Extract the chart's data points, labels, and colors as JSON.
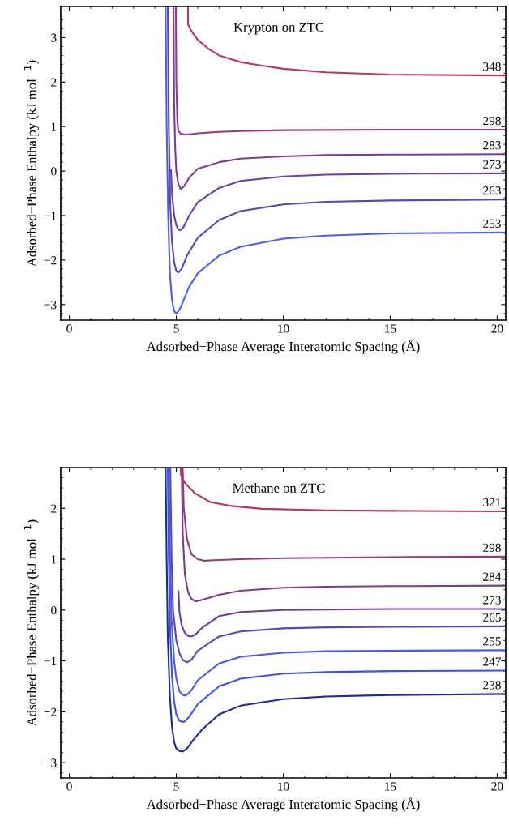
{
  "chart_data": [
    {
      "type": "line",
      "annotations": [
        "Krypton on ZTC"
      ],
      "xlabel": "Adsorbed−Phase Average Interatomic Spacing (Å)",
      "ylabel": "Adsorbed−Phase Enthalpy (kJ mol$^{−1}$)",
      "xlim": [
        -0.4,
        20.4
      ],
      "ylim": [
        -3.35,
        3.7
      ],
      "xticks": [
        0,
        5,
        10,
        15,
        20
      ],
      "yticks": [
        -3,
        -2,
        -1,
        0,
        1,
        2,
        3
      ],
      "grid": false,
      "legend": false,
      "series": [
        {
          "name": "253",
          "color": "#4a5cf5",
          "x": [
            4.5,
            4.55,
            4.62,
            4.7,
            4.8,
            4.9,
            5.0,
            5.15,
            5.3,
            5.6,
            6,
            7,
            8,
            10,
            12,
            15,
            20.4
          ],
          "values": [
            3.7,
            1.0,
            -1.0,
            -2.3,
            -2.9,
            -3.15,
            -3.2,
            -3.12,
            -2.95,
            -2.6,
            -2.3,
            -1.9,
            -1.7,
            -1.52,
            -1.45,
            -1.4,
            -1.38
          ]
        },
        {
          "name": "263",
          "color": "#5a45c0",
          "x": [
            4.6,
            4.65,
            4.72,
            4.8,
            4.9,
            5.0,
            5.1,
            5.25,
            5.5,
            6,
            7,
            8,
            10,
            12,
            15,
            20.4
          ],
          "values": [
            3.7,
            1.0,
            -0.8,
            -1.6,
            -2.05,
            -2.25,
            -2.28,
            -2.2,
            -1.9,
            -1.5,
            -1.1,
            -0.9,
            -0.75,
            -0.69,
            -0.66,
            -0.64
          ]
        },
        {
          "name": "273",
          "color": "#6a3fa8",
          "x": [
            4.75,
            4.8,
            4.9,
            5.0,
            5.1,
            5.2,
            5.35,
            5.6,
            6,
            7,
            8,
            10,
            12,
            15,
            20.4
          ],
          "values": [
            0.03,
            -0.5,
            -1.0,
            -1.22,
            -1.31,
            -1.33,
            -1.25,
            -1.0,
            -0.7,
            -0.38,
            -0.22,
            -0.12,
            -0.08,
            -0.06,
            -0.05
          ]
        },
        {
          "name": "283",
          "color": "#7f3a98",
          "x": [
            4.87,
            4.9,
            4.95,
            5.0,
            5.1,
            5.2,
            5.35,
            5.6,
            6,
            7,
            8,
            10,
            12,
            15,
            20.4
          ],
          "values": [
            3.7,
            1.5,
            0.5,
            0.0,
            -0.3,
            -0.4,
            -0.35,
            -0.15,
            0.05,
            0.2,
            0.28,
            0.33,
            0.36,
            0.37,
            0.38
          ]
        },
        {
          "name": "298",
          "color": "#963a7e",
          "x": [
            4.98,
            5.0,
            5.05,
            5.1,
            5.2,
            5.4,
            5.7,
            6,
            7,
            8,
            10,
            15,
            20.4
          ],
          "values": [
            3.7,
            2.0,
            1.1,
            0.9,
            0.84,
            0.82,
            0.83,
            0.85,
            0.88,
            0.9,
            0.92,
            0.93,
            0.93
          ]
        },
        {
          "name": "348",
          "color": "#c0365a",
          "x": [
            5.55,
            5.55,
            5.7,
            6,
            6.5,
            7,
            8,
            9,
            10,
            12,
            15,
            20.4
          ],
          "values": [
            3.7,
            3.3,
            3.15,
            2.95,
            2.75,
            2.6,
            2.45,
            2.37,
            2.3,
            2.22,
            2.17,
            2.15
          ]
        }
      ]
    },
    {
      "type": "line",
      "annotations": [
        "Methane on ZTC"
      ],
      "xlabel": "Adsorbed−Phase Average Interatomic Spacing (Å)",
      "ylabel": "Adsorbed−Phase Enthalpy (kJ mol$^{−1}$)",
      "xlim": [
        -0.4,
        20.4
      ],
      "ylim": [
        -3.3,
        2.8
      ],
      "xticks": [
        0,
        5,
        10,
        15,
        20
      ],
      "yticks": [
        -3,
        -2,
        -1,
        0,
        1,
        2
      ],
      "grid": false,
      "legend": false,
      "series": [
        {
          "name": "238",
          "color": "#1a2a99",
          "x": [
            4.5,
            4.55,
            4.6,
            4.7,
            4.8,
            4.9,
            5.0,
            5.15,
            5.3,
            5.5,
            5.8,
            6.2,
            7,
            8,
            10,
            12,
            15,
            20.4
          ],
          "values": [
            2.8,
            1.0,
            -0.5,
            -1.7,
            -2.3,
            -2.6,
            -2.72,
            -2.77,
            -2.78,
            -2.72,
            -2.55,
            -2.35,
            -2.05,
            -1.88,
            -1.75,
            -1.7,
            -1.67,
            -1.65
          ]
        },
        {
          "name": "247",
          "color": "#3a50f0",
          "x": [
            4.6,
            4.65,
            4.72,
            4.8,
            4.9,
            5.0,
            5.15,
            5.35,
            5.6,
            6,
            7,
            8,
            10,
            12,
            15,
            20.4
          ],
          "values": [
            2.8,
            1.0,
            -0.5,
            -1.3,
            -1.8,
            -2.05,
            -2.18,
            -2.2,
            -2.1,
            -1.85,
            -1.5,
            -1.35,
            -1.25,
            -1.22,
            -1.2,
            -1.19
          ]
        },
        {
          "name": "255",
          "color": "#4858f5",
          "x": [
            4.65,
            4.7,
            4.78,
            4.9,
            5.0,
            5.15,
            5.3,
            5.45,
            5.7,
            6,
            7,
            8,
            10,
            12,
            15,
            20.4
          ],
          "values": [
            2.8,
            1.2,
            -0.2,
            -1.0,
            -1.35,
            -1.6,
            -1.67,
            -1.68,
            -1.58,
            -1.38,
            -1.05,
            -0.92,
            -0.84,
            -0.81,
            -0.8,
            -0.79
          ]
        },
        {
          "name": "265",
          "color": "#5a45b8",
          "x": [
            4.72,
            4.78,
            4.85,
            5.0,
            5.15,
            5.3,
            5.5,
            5.7,
            6,
            7,
            8,
            10,
            12,
            15,
            20.4
          ],
          "values": [
            2.8,
            1.0,
            0.0,
            -0.6,
            -0.85,
            -0.98,
            -1.03,
            -0.98,
            -0.8,
            -0.52,
            -0.42,
            -0.36,
            -0.34,
            -0.33,
            -0.32
          ]
        },
        {
          "name": "273",
          "color": "#6a3a9c",
          "x": [
            5.1,
            5.15,
            5.25,
            5.4,
            5.55,
            5.7,
            5.9,
            6.2,
            7,
            8,
            10,
            12,
            15,
            20.4
          ],
          "values": [
            0.37,
            -0.05,
            -0.3,
            -0.45,
            -0.51,
            -0.52,
            -0.48,
            -0.35,
            -0.12,
            -0.04,
            0.0,
            0.01,
            0.02,
            0.02
          ]
        },
        {
          "name": "284",
          "color": "#7f3a8e",
          "x": [
            5.25,
            5.3,
            5.4,
            5.55,
            5.7,
            5.9,
            6.2,
            7,
            8,
            10,
            12,
            15,
            20.4
          ],
          "values": [
            2.8,
            1.5,
            0.7,
            0.35,
            0.22,
            0.17,
            0.2,
            0.3,
            0.38,
            0.44,
            0.46,
            0.47,
            0.48
          ]
        },
        {
          "name": "298",
          "color": "#963a78",
          "x": [
            5.3,
            5.35,
            5.5,
            5.7,
            6.0,
            6.3,
            6.8,
            8,
            10,
            15,
            20.4
          ],
          "values": [
            2.8,
            2.0,
            1.4,
            1.1,
            1.0,
            0.97,
            0.98,
            1.0,
            1.02,
            1.04,
            1.05
          ]
        },
        {
          "name": "321",
          "color": "#b83560",
          "x": [
            5.2,
            5.22,
            5.4,
            5.85,
            6.6,
            7.5,
            9,
            12,
            15,
            20.4
          ],
          "values": [
            2.8,
            2.65,
            2.5,
            2.3,
            2.12,
            2.05,
            1.99,
            1.96,
            1.95,
            1.94
          ]
        }
      ]
    }
  ]
}
